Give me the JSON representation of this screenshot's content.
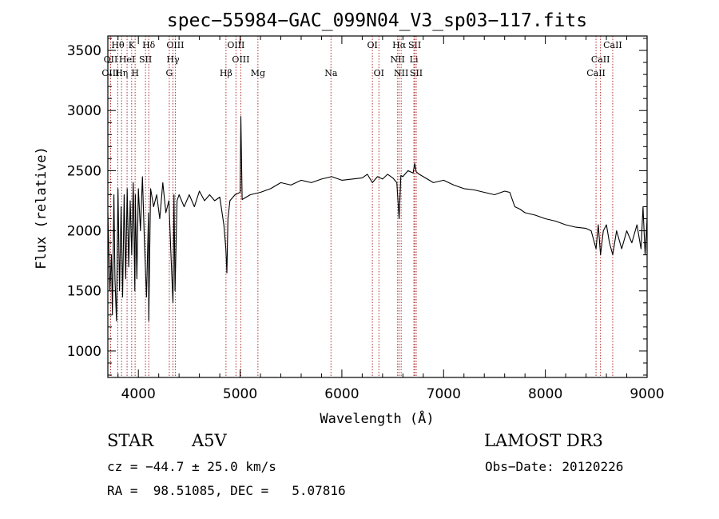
{
  "chart_data": {
    "type": "line",
    "title": "spec−55984−GAC_099N04_V3_sp03−117.fits",
    "xlabel": "Wavelength (Å)",
    "ylabel": "Flux (relative)",
    "xlim": [
      3700,
      9000
    ],
    "ylim": [
      780,
      3620
    ],
    "xticks": [
      4000,
      5000,
      6000,
      7000,
      8000,
      9000
    ],
    "xtick_labels": [
      "4000",
      "5000",
      "6000",
      "7000",
      "8000",
      "9000"
    ],
    "yticks": [
      1000,
      1500,
      2000,
      2500,
      3000,
      3500
    ],
    "ytick_labels": [
      "1000",
      "1500",
      "2000",
      "2500",
      "3000",
      "3500"
    ],
    "series": [
      {
        "name": "flux",
        "x": [
          3700,
          3720,
          3735,
          3745,
          3760,
          3770,
          3785,
          3800,
          3815,
          3830,
          3845,
          3860,
          3875,
          3890,
          3905,
          3920,
          3935,
          3950,
          3965,
          3970,
          3985,
          4000,
          4020,
          4040,
          4060,
          4080,
          4100,
          4102,
          4120,
          4150,
          4180,
          4210,
          4240,
          4270,
          4300,
          4320,
          4340,
          4350,
          4360,
          4380,
          4400,
          4450,
          4500,
          4550,
          4600,
          4650,
          4700,
          4750,
          4800,
          4840,
          4860,
          4870,
          4880,
          4900,
          4950,
          5000,
          5007,
          5020,
          5100,
          5200,
          5300,
          5400,
          5500,
          5600,
          5700,
          5800,
          5900,
          6000,
          6100,
          6200,
          6250,
          6300,
          6350,
          6400,
          6450,
          6500,
          6540,
          6563,
          6580,
          6600,
          6650,
          6700,
          6716,
          6731,
          6760,
          6800,
          6900,
          7000,
          7100,
          7200,
          7300,
          7400,
          7500,
          7600,
          7650,
          7700,
          7750,
          7800,
          7900,
          8000,
          8100,
          8200,
          8300,
          8400,
          8450,
          8498,
          8520,
          8542,
          8570,
          8600,
          8630,
          8662,
          8700,
          8750,
          8800,
          8850,
          8900,
          8940,
          8960,
          8980,
          9000
        ],
        "y": [
          2150,
          1500,
          1800,
          1300,
          2300,
          1600,
          1250,
          2350,
          1500,
          2200,
          1450,
          2300,
          1600,
          2350,
          1700,
          2250,
          1800,
          2400,
          1500,
          2300,
          1600,
          2350,
          2000,
          2450,
          1900,
          1450,
          2150,
          1250,
          2350,
          2200,
          2300,
          2100,
          2400,
          2150,
          2250,
          1800,
          1400,
          2300,
          1500,
          2250,
          2300,
          2200,
          2300,
          2200,
          2330,
          2250,
          2300,
          2250,
          2280,
          2050,
          1850,
          1650,
          2100,
          2250,
          2300,
          2320,
          2950,
          2260,
          2300,
          2320,
          2350,
          2400,
          2380,
          2420,
          2400,
          2430,
          2450,
          2420,
          2430,
          2440,
          2470,
          2400,
          2450,
          2430,
          2470,
          2440,
          2400,
          2100,
          2460,
          2450,
          2500,
          2480,
          2560,
          2490,
          2470,
          2450,
          2400,
          2420,
          2380,
          2350,
          2340,
          2320,
          2300,
          2330,
          2320,
          2200,
          2180,
          2150,
          2130,
          2100,
          2080,
          2050,
          2030,
          2020,
          2000,
          1850,
          2050,
          1800,
          2000,
          2050,
          1900,
          1800,
          2000,
          1850,
          2000,
          1900,
          2050,
          1850,
          2200,
          1800,
          2100
        ]
      }
    ],
    "lines": [
      {
        "name": "Hθ",
        "x": 3798,
        "row": 1
      },
      {
        "name": "K",
        "x": 3934,
        "row": 1
      },
      {
        "name": "Hδ",
        "x": 4102,
        "row": 1
      },
      {
        "name": "OIII",
        "x": 4363,
        "row": 1
      },
      {
        "name": "OIII",
        "x": 4959,
        "row": 1
      },
      {
        "name": "OI",
        "x": 6300,
        "row": 1
      },
      {
        "name": "Hα",
        "x": 6563,
        "row": 1
      },
      {
        "name": "SII",
        "x": 6716,
        "row": 1
      },
      {
        "name": "CaII",
        "x": 8662,
        "row": 1
      },
      {
        "name": "OII",
        "x": 3727,
        "row": 2
      },
      {
        "name": "HeI",
        "x": 3889,
        "row": 2
      },
      {
        "name": "SII",
        "x": 4070,
        "row": 2
      },
      {
        "name": "Hγ",
        "x": 4340,
        "row": 2
      },
      {
        "name": "OIII",
        "x": 5007,
        "row": 2
      },
      {
        "name": "NII",
        "x": 6548,
        "row": 2
      },
      {
        "name": "Li",
        "x": 6708,
        "row": 2
      },
      {
        "name": "CaII",
        "x": 8542,
        "row": 2
      },
      {
        "name": "OIII",
        "x": 3727,
        "row": 3
      },
      {
        "name": "Hη",
        "x": 3835,
        "row": 3
      },
      {
        "name": "H",
        "x": 3968,
        "row": 3
      },
      {
        "name": "G",
        "x": 4304,
        "row": 3
      },
      {
        "name": "Hβ",
        "x": 4861,
        "row": 3
      },
      {
        "name": "Mg",
        "x": 5175,
        "row": 3
      },
      {
        "name": "Na",
        "x": 5893,
        "row": 3
      },
      {
        "name": "OI",
        "x": 6364,
        "row": 3
      },
      {
        "name": "NII",
        "x": 6583,
        "row": 3
      },
      {
        "name": "SII",
        "x": 6731,
        "row": 3
      },
      {
        "name": "CaII",
        "x": 8498,
        "row": 3
      }
    ],
    "colors": {
      "line": "#000000",
      "marker": "#b03030"
    }
  },
  "info": {
    "class_label": "STAR",
    "subclass": "A5V",
    "survey": "LAMOST DR3",
    "cz": "cz = −44.7 ± 25.0 km/s",
    "obs_date": "Obs−Date: 20120226",
    "coords": "RA =  98.51085, DEC =   5.07816"
  }
}
